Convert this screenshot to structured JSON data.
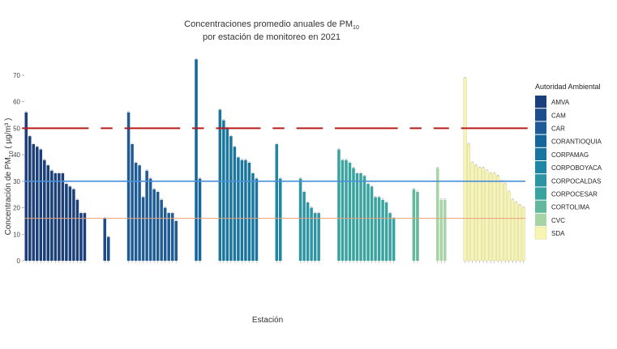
{
  "chart_data": {
    "type": "bar",
    "title_line1": "Concentraciones promedio anuales de PM",
    "title_line1_sub": "10",
    "title_line2": "por estación de monitoreo en 2021",
    "xlabel": "Estación",
    "ylabel_prefix": "Concentración de PM",
    "ylabel_sub": "10",
    "ylabel_units": " ( µg/m³ )",
    "ylim": [
      0,
      77
    ],
    "yticks": [
      0,
      10,
      20,
      30,
      40,
      50,
      60,
      70
    ],
    "grid": false,
    "legend": {
      "title": "Autoridad Ambiental",
      "placement": "right"
    },
    "reference_lines": [
      {
        "value": 50,
        "color": "#b71c1c",
        "style": "dashed"
      },
      {
        "value": 30,
        "color": "#4a90d9",
        "style": "solid"
      },
      {
        "value": 16,
        "color": "#e8a07a",
        "style": "solid"
      }
    ],
    "groups": [
      {
        "name": "AMVA",
        "color": "#1b3f7a",
        "values": [
          56,
          47,
          44,
          43,
          42,
          38,
          36,
          34,
          33,
          33,
          33,
          29,
          28,
          27,
          23,
          18,
          18
        ]
      },
      {
        "name": "CAM",
        "color": "#1e4d8c",
        "values": [
          16,
          9
        ]
      },
      {
        "name": "CAR",
        "color": "#1f5c96",
        "values": [
          56,
          44,
          37,
          36,
          24,
          34,
          31,
          27,
          26,
          23,
          20,
          18,
          18,
          15
        ]
      },
      {
        "name": "CORANTIOQUIA",
        "color": "#16669a",
        "values": [
          76,
          31
        ]
      },
      {
        "name": "CORPAMAG",
        "color": "#1a769e",
        "values": [
          57,
          53,
          50,
          47,
          43,
          39,
          38,
          38,
          37,
          33,
          31
        ]
      },
      {
        "name": "CORPOBOYACA",
        "color": "#1f86a3",
        "values": [
          44,
          31
        ]
      },
      {
        "name": "CORPOCALDAS",
        "color": "#2c94a3",
        "values": [
          31,
          26,
          22,
          20,
          18,
          18
        ]
      },
      {
        "name": "CORPOCESAR",
        "color": "#3aa39f",
        "values": [
          42,
          38,
          38,
          37,
          35,
          33,
          33,
          32,
          29,
          28,
          24,
          24,
          23,
          22,
          18,
          16
        ]
      },
      {
        "name": "CORTOLIMA",
        "color": "#62b79c",
        "values": [
          27,
          26
        ]
      },
      {
        "name": "CVC",
        "color": "#a6d4a4",
        "values": [
          35,
          23,
          23
        ]
      },
      {
        "name": "SDA",
        "color": "#f7f5b0",
        "values": [
          69,
          44,
          37,
          36,
          35,
          35,
          34,
          33,
          33,
          32,
          30,
          29,
          26,
          23,
          22,
          21,
          20
        ]
      }
    ]
  }
}
